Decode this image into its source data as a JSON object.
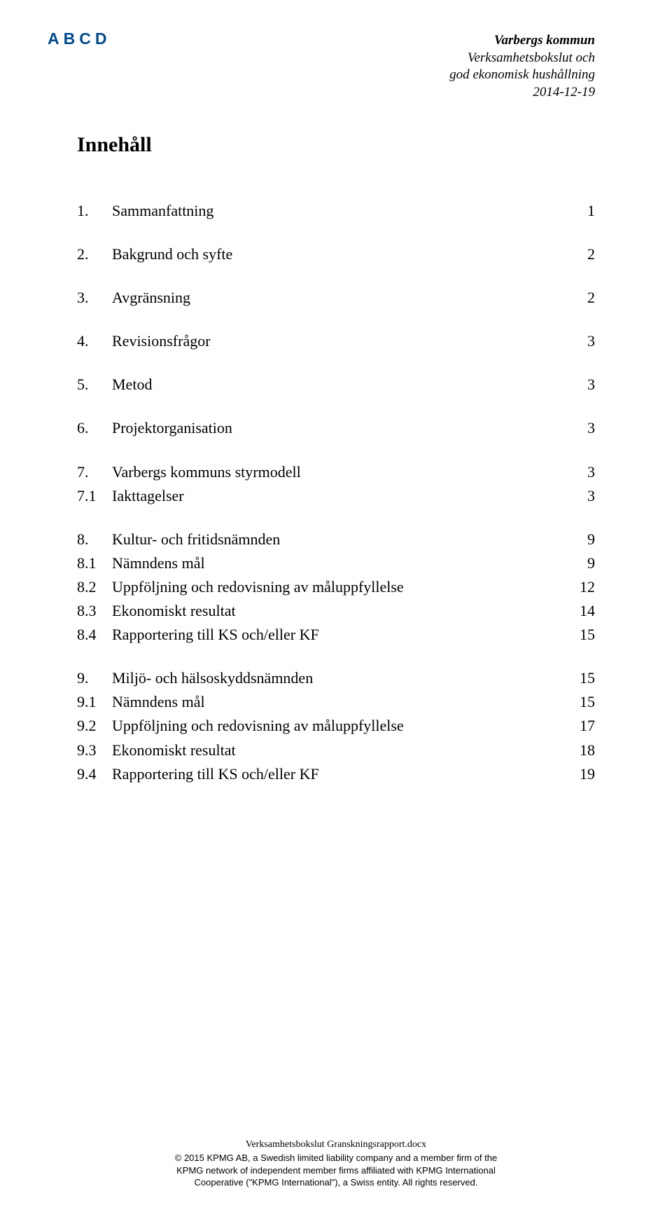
{
  "header": {
    "abcd": "ABCD",
    "org": "Varbergs kommun",
    "line2": "Verksamhetsbokslut och",
    "line3": "god ekonomisk hushållning",
    "date": "2014-12-19"
  },
  "title": "Innehåll",
  "toc": [
    {
      "group": [
        {
          "num": "1.",
          "label": "Sammanfattning",
          "page": "1"
        }
      ]
    },
    {
      "group": [
        {
          "num": "2.",
          "label": "Bakgrund och syfte",
          "page": "2"
        }
      ]
    },
    {
      "group": [
        {
          "num": "3.",
          "label": "Avgränsning",
          "page": "2"
        }
      ]
    },
    {
      "group": [
        {
          "num": "4.",
          "label": "Revisionsfrågor",
          "page": "3"
        }
      ]
    },
    {
      "group": [
        {
          "num": "5.",
          "label": "Metod",
          "page": "3"
        }
      ]
    },
    {
      "group": [
        {
          "num": "6.",
          "label": "Projektorganisation",
          "page": "3"
        }
      ]
    },
    {
      "group": [
        {
          "num": "7.",
          "label": "Varbergs kommuns styrmodell",
          "page": "3"
        },
        {
          "num": "7.1",
          "label": "Iakttagelser",
          "page": "3",
          "sub": true
        }
      ]
    },
    {
      "group": [
        {
          "num": "8.",
          "label": "Kultur- och fritidsnämnden",
          "page": "9"
        },
        {
          "num": "8.1",
          "label": "Nämndens mål",
          "page": "9",
          "sub": true
        },
        {
          "num": "8.2",
          "label": "Uppföljning och redovisning av måluppfyllelse",
          "page": "12",
          "sub": true
        },
        {
          "num": "8.3",
          "label": "Ekonomiskt resultat",
          "page": "14",
          "sub": true
        },
        {
          "num": "8.4",
          "label": "Rapportering till KS och/eller KF",
          "page": "15",
          "sub": true
        }
      ]
    },
    {
      "group": [
        {
          "num": "9.",
          "label": "Miljö- och hälsoskyddsnämnden",
          "page": "15"
        },
        {
          "num": "9.1",
          "label": "Nämndens mål",
          "page": "15",
          "sub": true
        },
        {
          "num": "9.2",
          "label": "Uppföljning och redovisning av måluppfyllelse",
          "page": "17",
          "sub": true
        },
        {
          "num": "9.3",
          "label": "Ekonomiskt resultat",
          "page": "18",
          "sub": true
        },
        {
          "num": "9.4",
          "label": "Rapportering till KS och/eller KF",
          "page": "19",
          "sub": true
        }
      ]
    }
  ],
  "footer": {
    "file": "Verksamhetsbokslut Granskningsrapport.docx",
    "c1": "© 2015 KPMG AB, a Swedish limited liability company and a member firm of the",
    "c2": "KPMG network of independent member firms affiliated with KPMG International",
    "c3": "Cooperative (\"KPMG International\"), a Swiss entity. All rights reserved."
  }
}
